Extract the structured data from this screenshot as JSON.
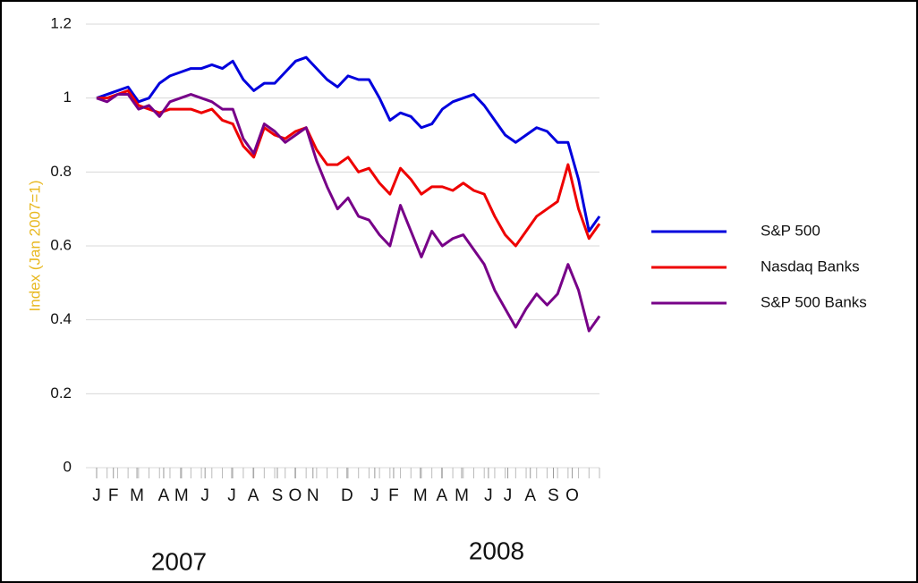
{
  "chart_data": {
    "type": "line",
    "y_label": "Index (Jan 2007=1)",
    "annotations": [
      "2007",
      "2008"
    ],
    "x": [
      0,
      2,
      4,
      6,
      8,
      10,
      12,
      14,
      16,
      18,
      20,
      22,
      24,
      26,
      28,
      30,
      32,
      34,
      36,
      38,
      40,
      42,
      44,
      46,
      48,
      50,
      52,
      54,
      56,
      58,
      60,
      62,
      64,
      66,
      68,
      70,
      72,
      74,
      76,
      78,
      80,
      82,
      84,
      86,
      88,
      90,
      92,
      94,
      96
    ],
    "xlim": [
      0,
      96
    ],
    "xticks": [
      {
        "value": 0,
        "label": "J"
      },
      {
        "value": 3.2,
        "label": "F"
      },
      {
        "value": 7.7,
        "label": "M"
      },
      {
        "value": 12.8,
        "label": "A"
      },
      {
        "value": 16.2,
        "label": "M"
      },
      {
        "value": 20.7,
        "label": "J"
      },
      {
        "value": 25.8,
        "label": "J"
      },
      {
        "value": 29.9,
        "label": "A"
      },
      {
        "value": 34.5,
        "label": "S"
      },
      {
        "value": 37.9,
        "label": "O"
      },
      {
        "value": 41.3,
        "label": "N"
      },
      {
        "value": 47.8,
        "label": "D"
      },
      {
        "value": 53.1,
        "label": "J"
      },
      {
        "value": 56.7,
        "label": "F"
      },
      {
        "value": 61.8,
        "label": "M"
      },
      {
        "value": 65.9,
        "label": "A"
      },
      {
        "value": 69.7,
        "label": "M"
      },
      {
        "value": 74.8,
        "label": "J"
      },
      {
        "value": 78.5,
        "label": "J"
      },
      {
        "value": 82.8,
        "label": "A"
      },
      {
        "value": 87.2,
        "label": "S"
      },
      {
        "value": 90.8,
        "label": "O"
      }
    ],
    "ylim": [
      0,
      1.2
    ],
    "yticks": [
      0,
      0.2,
      0.4,
      0.6,
      0.8,
      1,
      1.2
    ],
    "grid": true,
    "legend": "right",
    "series": [
      {
        "name": "S&P 500",
        "color": "#0000dd",
        "values": [
          1.0,
          1.01,
          1.02,
          1.03,
          0.99,
          1.0,
          1.04,
          1.06,
          1.07,
          1.08,
          1.08,
          1.09,
          1.08,
          1.1,
          1.05,
          1.02,
          1.04,
          1.04,
          1.07,
          1.1,
          1.11,
          1.08,
          1.05,
          1.03,
          1.06,
          1.05,
          1.05,
          1.0,
          0.94,
          0.96,
          0.95,
          0.92,
          0.93,
          0.97,
          0.99,
          1.0,
          1.01,
          0.98,
          0.94,
          0.9,
          0.88,
          0.9,
          0.92,
          0.91,
          0.88,
          0.88,
          0.78,
          0.64,
          0.68
        ]
      },
      {
        "name": "Nasdaq Banks",
        "color": "#ee0000",
        "values": [
          1.0,
          1.0,
          1.01,
          1.02,
          0.98,
          0.97,
          0.96,
          0.97,
          0.97,
          0.97,
          0.96,
          0.97,
          0.94,
          0.93,
          0.87,
          0.84,
          0.92,
          0.9,
          0.89,
          0.91,
          0.92,
          0.86,
          0.82,
          0.82,
          0.84,
          0.8,
          0.81,
          0.77,
          0.74,
          0.81,
          0.78,
          0.74,
          0.76,
          0.76,
          0.75,
          0.77,
          0.75,
          0.74,
          0.68,
          0.63,
          0.6,
          0.64,
          0.68,
          0.7,
          0.72,
          0.82,
          0.7,
          0.62,
          0.66
        ]
      },
      {
        "name": "S&P 500 Banks",
        "color": "#770088",
        "values": [
          1.0,
          0.99,
          1.01,
          1.01,
          0.97,
          0.98,
          0.95,
          0.99,
          1.0,
          1.01,
          1.0,
          0.99,
          0.97,
          0.97,
          0.89,
          0.85,
          0.93,
          0.91,
          0.88,
          0.9,
          0.92,
          0.83,
          0.76,
          0.7,
          0.73,
          0.68,
          0.67,
          0.63,
          0.6,
          0.71,
          0.64,
          0.57,
          0.64,
          0.6,
          0.62,
          0.63,
          0.59,
          0.55,
          0.48,
          0.43,
          0.38,
          0.43,
          0.47,
          0.44,
          0.47,
          0.55,
          0.48,
          0.37,
          0.41
        ]
      }
    ]
  }
}
